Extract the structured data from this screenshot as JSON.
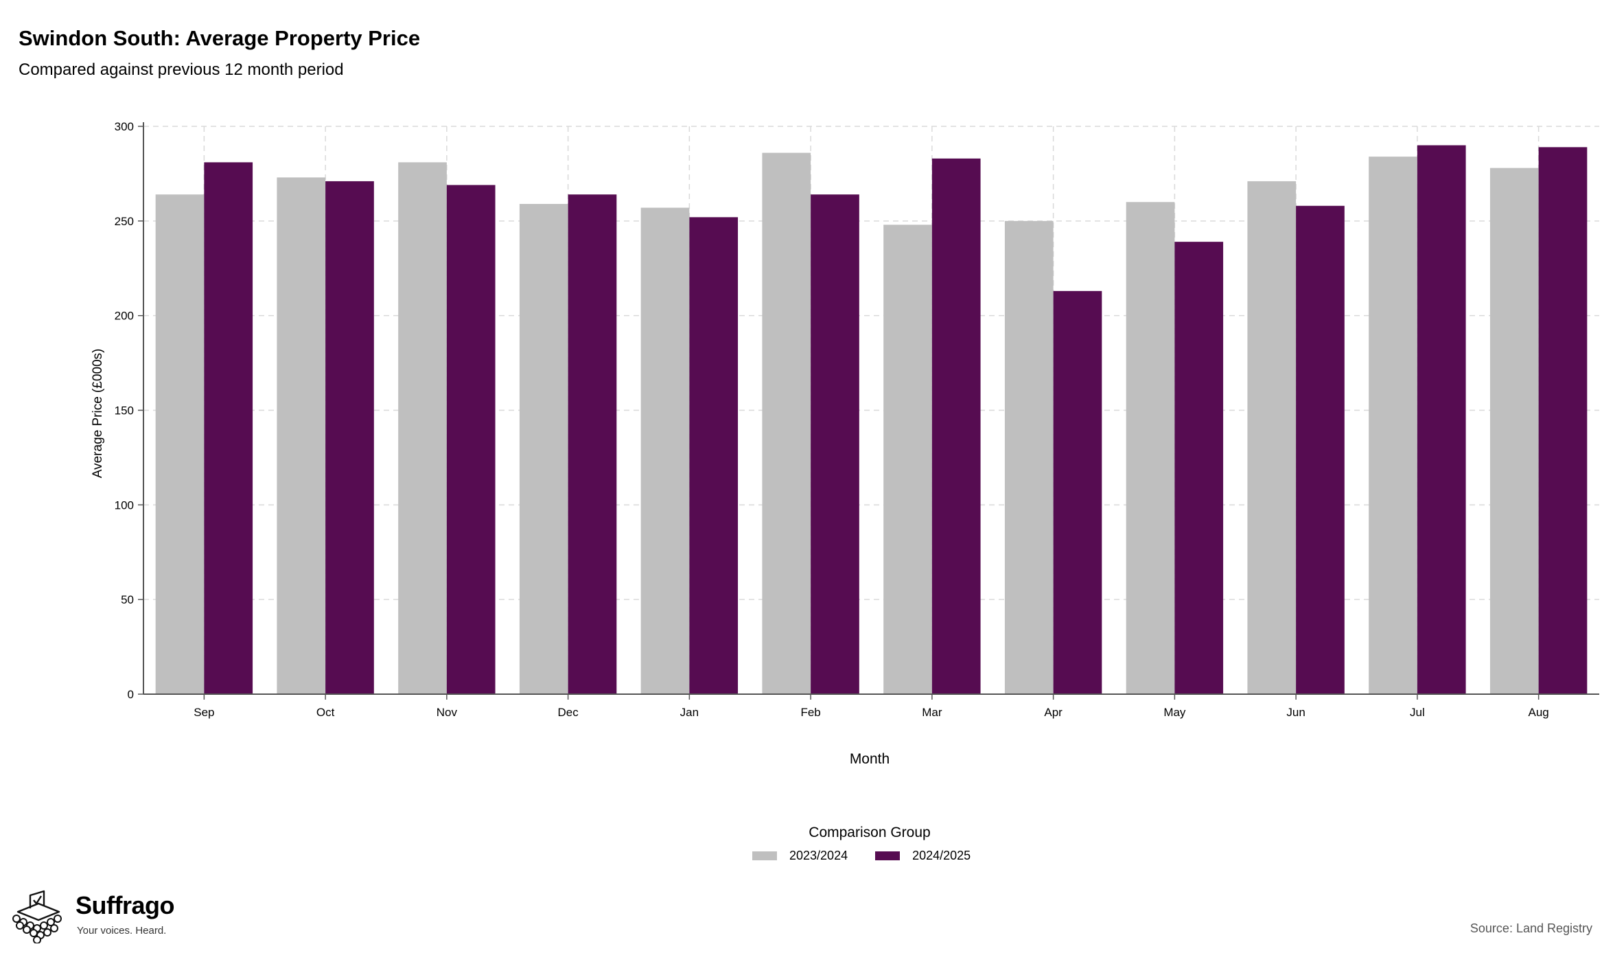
{
  "chart_data": {
    "type": "bar",
    "title": "Swindon South: Average Property Price",
    "subtitle": "Compared against previous 12 month period",
    "xlabel": "Month",
    "ylabel": "Average Price (£000s)",
    "categories": [
      "Sep",
      "Oct",
      "Nov",
      "Dec",
      "Jan",
      "Feb",
      "Mar",
      "Apr",
      "May",
      "Jun",
      "Jul",
      "Aug"
    ],
    "series": [
      {
        "name": "2023/2024",
        "color": "#bfbfbf",
        "values": [
          264,
          273,
          281,
          259,
          257,
          286,
          248,
          250,
          260,
          271,
          284,
          278
        ]
      },
      {
        "name": "2024/2025",
        "color": "#560c51",
        "values": [
          281,
          271,
          269,
          264,
          252,
          264,
          283,
          213,
          239,
          258,
          290,
          289
        ]
      }
    ],
    "ylim": [
      0,
      300
    ],
    "yticks": [
      0,
      50,
      100,
      150,
      200,
      250,
      300
    ],
    "grid": true,
    "legend_title": "Comparison Group",
    "legend_position": "bottom"
  },
  "branding": {
    "name": "Suffrago",
    "tagline": "Your voices. Heard.",
    "logo_icon": "ballot-box-icon"
  },
  "source": "Source: Land Registry"
}
